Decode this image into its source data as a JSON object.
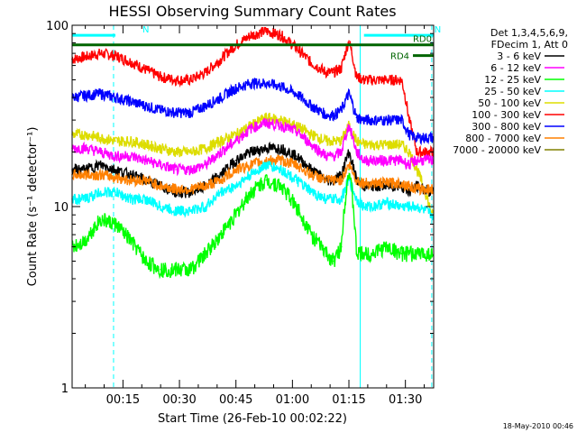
{
  "chart_data": {
    "type": "line",
    "title": "HESSI Observing Summary Count Rates",
    "xlabel": "Start Time (26-Feb-10 00:02:22)",
    "ylabel": "Count Rate (s⁻¹ detector⁻¹)",
    "ylog": true,
    "ylim": [
      1,
      100
    ],
    "xlim_minutes_after_midnight": [
      4.5,
      100.5
    ],
    "yticks": [
      {
        "value": 1,
        "label": "1"
      },
      {
        "value": 10,
        "label": "10"
      },
      {
        "value": 100,
        "label": "100"
      }
    ],
    "xticks": [
      {
        "value": 18,
        "label": "00:15"
      },
      {
        "value": 33,
        "label": "00:30"
      },
      {
        "value": 48,
        "label": "00:45"
      },
      {
        "value": 63,
        "label": "01:00"
      },
      {
        "value": 78,
        "label": "01:15"
      },
      {
        "value": 93,
        "label": "01:30"
      }
    ],
    "legend_header": [
      "Det 1,3,4,5,6,9,",
      "FDecim 1, Att 0"
    ],
    "legend_placement": "right",
    "series": [
      {
        "name": "3 - 6 keV",
        "color": "#000000",
        "x": [
          4.5,
          8,
          12,
          16,
          20,
          24,
          28,
          32,
          36,
          40,
          44,
          48,
          52,
          56,
          60,
          64,
          68,
          72,
          74,
          76,
          78,
          80,
          82,
          84,
          88,
          92,
          94,
          96,
          100
        ],
        "values": [
          16,
          16,
          17,
          16,
          15,
          14,
          13,
          12,
          12,
          13,
          15,
          18,
          20,
          21,
          21,
          19,
          16,
          14,
          14,
          15,
          20,
          14,
          13,
          13,
          13,
          13,
          12,
          13,
          12
        ]
      },
      {
        "name": "6 - 12 keV",
        "color": "#ff00ff",
        "x": [
          4.5,
          8,
          12,
          16,
          20,
          24,
          28,
          32,
          36,
          40,
          44,
          48,
          52,
          56,
          60,
          64,
          68,
          72,
          74,
          76,
          78,
          80,
          82,
          84,
          88,
          92,
          94,
          96,
          100
        ],
        "values": [
          21,
          21,
          20,
          19,
          19,
          18,
          17,
          16,
          16,
          17,
          20,
          23,
          27,
          29,
          28,
          26,
          22,
          19,
          19,
          20,
          28,
          20,
          18,
          18,
          18,
          18,
          17,
          18,
          18
        ]
      },
      {
        "name": "12 - 25 keV",
        "color": "#00ff00",
        "x": [
          4.5,
          8,
          12,
          16,
          20,
          24,
          28,
          32,
          36,
          40,
          44,
          48,
          52,
          56,
          60,
          64,
          68,
          72,
          74,
          76,
          78,
          80,
          82,
          84,
          88,
          92,
          94,
          96,
          100
        ],
        "values": [
          6,
          6.5,
          8.5,
          8,
          6.5,
          5,
          4.5,
          4.5,
          4.5,
          5.5,
          7,
          9,
          12,
          14,
          13,
          10,
          7,
          5.5,
          5,
          6,
          16,
          5.5,
          5.5,
          5.5,
          6,
          5.5,
          5.5,
          5.5,
          5.5
        ]
      },
      {
        "name": "25 - 50 keV",
        "color": "#00ffff",
        "x": [
          4.5,
          8,
          12,
          16,
          20,
          24,
          28,
          32,
          36,
          40,
          44,
          48,
          52,
          56,
          60,
          64,
          68,
          72,
          74,
          76,
          78,
          80,
          82,
          84,
          88,
          92,
          94,
          96,
          100
        ],
        "values": [
          11,
          11,
          12,
          12,
          11,
          11,
          10,
          9.5,
          9.5,
          10,
          12,
          13,
          15,
          17,
          16,
          14,
          12,
          11,
          11,
          11,
          14,
          11,
          10,
          10,
          10.5,
          10,
          10,
          10,
          9
        ]
      },
      {
        "name": "50 - 100 keV",
        "color": "#dddd00",
        "x": [
          4.5,
          8,
          12,
          16,
          20,
          24,
          28,
          32,
          36,
          40,
          44,
          48,
          52,
          56,
          60,
          64,
          68,
          72,
          74,
          76,
          78,
          80,
          82,
          84,
          88,
          92,
          94,
          96,
          100
        ],
        "values": [
          25,
          25,
          24,
          23,
          23,
          22,
          21,
          20,
          20,
          21,
          23,
          25,
          28,
          31,
          30,
          28,
          25,
          23,
          23,
          23,
          28,
          23,
          22,
          22,
          22,
          22,
          20,
          16,
          9
        ]
      },
      {
        "name": "100 - 300 keV",
        "color": "#ff0000",
        "x": [
          4.5,
          8,
          12,
          16,
          20,
          24,
          28,
          32,
          36,
          40,
          44,
          48,
          52,
          56,
          60,
          64,
          68,
          72,
          74,
          76,
          78,
          80,
          82,
          84,
          88,
          92,
          94,
          96,
          100
        ],
        "values": [
          65,
          67,
          70,
          68,
          63,
          57,
          52,
          50,
          50,
          55,
          65,
          78,
          88,
          93,
          88,
          75,
          62,
          55,
          55,
          58,
          82,
          52,
          50,
          50,
          50,
          50,
          30,
          20,
          20
        ]
      },
      {
        "name": "300 - 800 keV",
        "color": "#0000ff",
        "x": [
          4.5,
          8,
          12,
          16,
          20,
          24,
          28,
          32,
          36,
          40,
          44,
          48,
          52,
          56,
          60,
          64,
          68,
          72,
          74,
          76,
          78,
          80,
          82,
          84,
          88,
          92,
          94,
          96,
          100
        ],
        "values": [
          40,
          41,
          42,
          40,
          38,
          36,
          34,
          33,
          33,
          36,
          40,
          45,
          48,
          48,
          46,
          42,
          36,
          32,
          32,
          34,
          42,
          31,
          30,
          30,
          30,
          30,
          25,
          24,
          24
        ]
      },
      {
        "name": "800 - 7000 keV",
        "color": "#ff8000",
        "x": [
          4.5,
          8,
          12,
          16,
          20,
          24,
          28,
          32,
          36,
          40,
          44,
          48,
          52,
          56,
          60,
          64,
          68,
          72,
          74,
          76,
          78,
          80,
          82,
          84,
          88,
          92,
          94,
          96,
          100
        ],
        "values": [
          15,
          15,
          15,
          14.5,
          14,
          14,
          13,
          12.5,
          12.5,
          13,
          14,
          16,
          17,
          18,
          18,
          17,
          15,
          14,
          14,
          14,
          17,
          14,
          13.5,
          13.5,
          13.5,
          13.5,
          13,
          12.5,
          12.5
        ]
      },
      {
        "name": "7000 - 20000 keV",
        "color": "#808000",
        "x": [],
        "values": []
      }
    ],
    "annotations": [
      {
        "text": "N",
        "color": "#00ffff",
        "x_start": 4.5,
        "x_end": 16,
        "level": 88
      },
      {
        "text": "N",
        "color": "#00ffff",
        "x_start": 82,
        "x_end": 100.5,
        "level": 88
      },
      {
        "text": "RD0",
        "color": "#006400",
        "x_start": 4.5,
        "x_end": 100.5,
        "level": 78
      },
      {
        "text": "RD4",
        "color": "#006400",
        "x_start": 95,
        "x_end": 100.5,
        "level": 68
      }
    ],
    "vertical_lines": [
      {
        "x": 4.5,
        "style": "solid",
        "color": "#00ffff"
      },
      {
        "x": 15.5,
        "style": "dashed",
        "color": "#00ffff"
      },
      {
        "x": 81,
        "style": "solid",
        "color": "#00ffff"
      },
      {
        "x": 100,
        "style": "dashed",
        "color": "#00ffff"
      }
    ]
  },
  "footer_timestamp": "18-May-2010 00:46"
}
